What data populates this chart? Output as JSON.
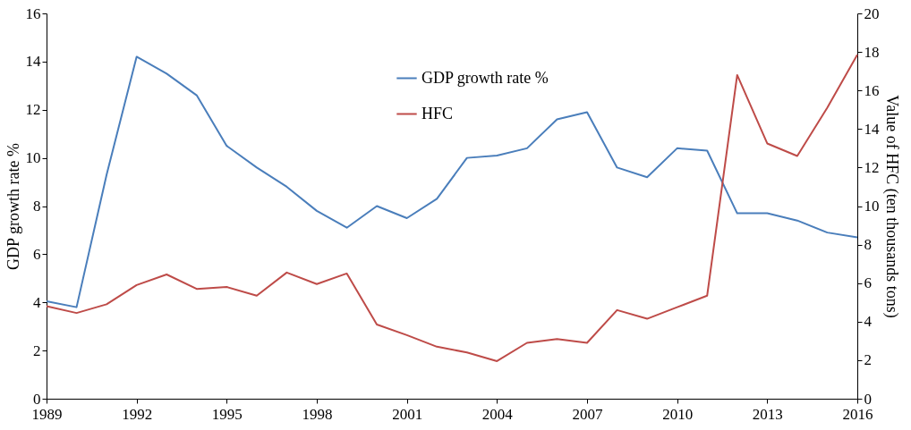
{
  "chart_data": {
    "type": "line",
    "ylabel": "GDP growth rate  %",
    "y2label": "Value of HFC (ten thousands tons)",
    "x": [
      1989,
      1990,
      1991,
      1992,
      1993,
      1994,
      1995,
      1996,
      1997,
      1998,
      1999,
      2000,
      2001,
      2002,
      2003,
      2004,
      2005,
      2006,
      2007,
      2008,
      2009,
      2010,
      2011,
      2012,
      2013,
      2014,
      2015,
      2016
    ],
    "xlim": [
      1989,
      2016
    ],
    "xticks": [
      1989,
      1992,
      1995,
      1998,
      2001,
      2004,
      2007,
      2010,
      2013,
      2016
    ],
    "ylim": [
      0,
      16
    ],
    "yticks": [
      0,
      2,
      4,
      6,
      8,
      10,
      12,
      14,
      16
    ],
    "y2lim": [
      0,
      20
    ],
    "y2ticks": [
      0,
      2,
      4,
      6,
      8,
      10,
      12,
      14,
      16,
      18,
      20
    ],
    "legend": "top",
    "marker": "none",
    "line_style": "solid",
    "series": [
      {
        "name": "GDP growth rate %",
        "color": "#4a7ebb",
        "values": [
          4.05,
          3.8,
          9.3,
          14.2,
          13.5,
          12.6,
          10.5,
          9.6,
          8.8,
          7.8,
          7.1,
          8.0,
          7.5,
          8.3,
          10.0,
          10.1,
          10.4,
          11.6,
          11.9,
          9.6,
          9.2,
          10.4,
          10.3,
          7.7,
          7.7,
          7.4,
          6.9,
          6.7
        ]
      },
      {
        "name": "HFC",
        "color": "#be4b48",
        "axis": "y2",
        "values": [
          4.8,
          4.45,
          4.9,
          5.9,
          6.45,
          5.7,
          5.8,
          5.35,
          6.55,
          5.95,
          6.5,
          3.85,
          3.3,
          2.7,
          2.4,
          1.95,
          2.9,
          3.1,
          2.9,
          4.6,
          4.15,
          4.75,
          5.35,
          16.8,
          13.25,
          12.6,
          15.1,
          17.85
        ]
      }
    ]
  }
}
